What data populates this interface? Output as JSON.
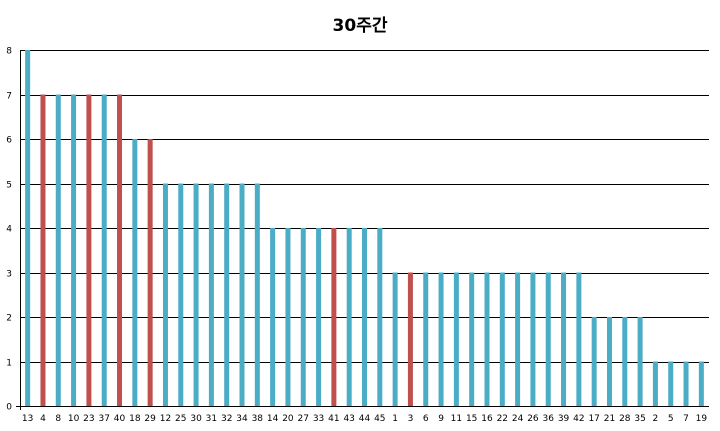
{
  "chart_data": {
    "type": "bar",
    "title": "30주간",
    "xlabel": "",
    "ylabel": "",
    "ylim": [
      0,
      8
    ],
    "yticks": [
      "0",
      "1",
      "2",
      "3",
      "4",
      "5",
      "6",
      "7",
      "8"
    ],
    "grid": true,
    "legend": "none",
    "categories": [
      "13",
      "4",
      "8",
      "10",
      "23",
      "37",
      "40",
      "18",
      "29",
      "12",
      "25",
      "30",
      "31",
      "32",
      "34",
      "38",
      "14",
      "20",
      "27",
      "33",
      "41",
      "43",
      "44",
      "45",
      "1",
      "3",
      "6",
      "9",
      "11",
      "15",
      "16",
      "22",
      "24",
      "26",
      "36",
      "39",
      "42",
      "17",
      "21",
      "28",
      "35",
      "2",
      "5",
      "7",
      "19"
    ],
    "values": [
      8,
      7,
      7,
      7,
      7,
      7,
      7,
      6,
      6,
      5,
      5,
      5,
      5,
      5,
      5,
      5,
      4,
      4,
      4,
      4,
      4,
      4,
      4,
      4,
      3,
      3,
      3,
      3,
      3,
      3,
      3,
      3,
      3,
      3,
      3,
      3,
      3,
      2,
      2,
      2,
      2,
      1,
      1,
      1,
      1
    ],
    "highlighted": [
      "4",
      "23",
      "40",
      "29",
      "41",
      "3"
    ],
    "colors": {
      "default": "#4bacc6",
      "highlight": "#c0504d"
    }
  }
}
